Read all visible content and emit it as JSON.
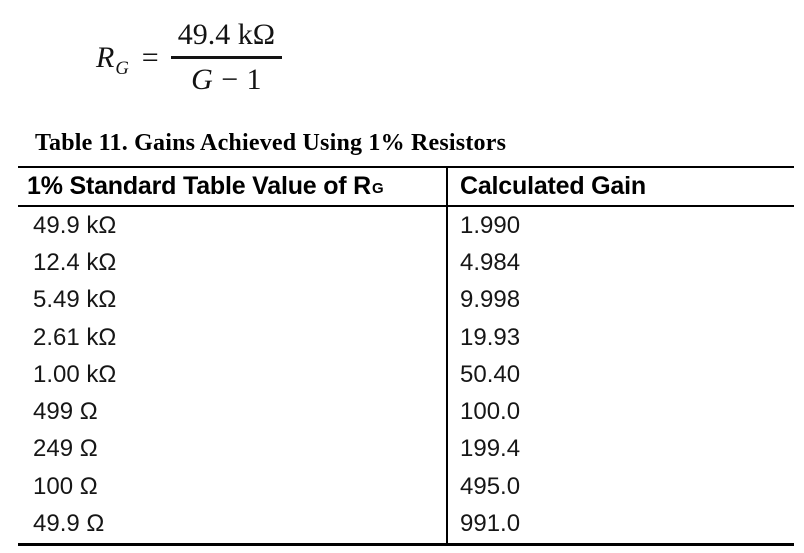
{
  "formula": {
    "lhs_base": "R",
    "lhs_sub": "G",
    "equals": "=",
    "numerator": "49.4 kΩ",
    "denominator": {
      "variable": "G",
      "operator": "−",
      "constant": "1"
    }
  },
  "table": {
    "title": "Table 11. Gains Achieved Using 1% Resistors",
    "header": {
      "col1_main": "1% Standard Table Value of R",
      "col1_sub": "G",
      "col2": "Calculated Gain"
    },
    "rows": [
      {
        "rg": "49.9 kΩ",
        "gain": "1.990"
      },
      {
        "rg": "12.4 kΩ",
        "gain": "4.984"
      },
      {
        "rg": "5.49 kΩ",
        "gain": "9.998"
      },
      {
        "rg": "2.61 kΩ",
        "gain": "19.93"
      },
      {
        "rg": "1.00 kΩ",
        "gain": "50.40"
      },
      {
        "rg": "499 Ω",
        "gain": "100.0"
      },
      {
        "rg": "249 Ω",
        "gain": "199.4"
      },
      {
        "rg": "100 Ω",
        "gain": "495.0"
      },
      {
        "rg": "49.9 Ω",
        "gain": "991.0"
      }
    ],
    "colors": {
      "text": "#161616",
      "rule": "#000000",
      "background": "#ffffff"
    }
  }
}
